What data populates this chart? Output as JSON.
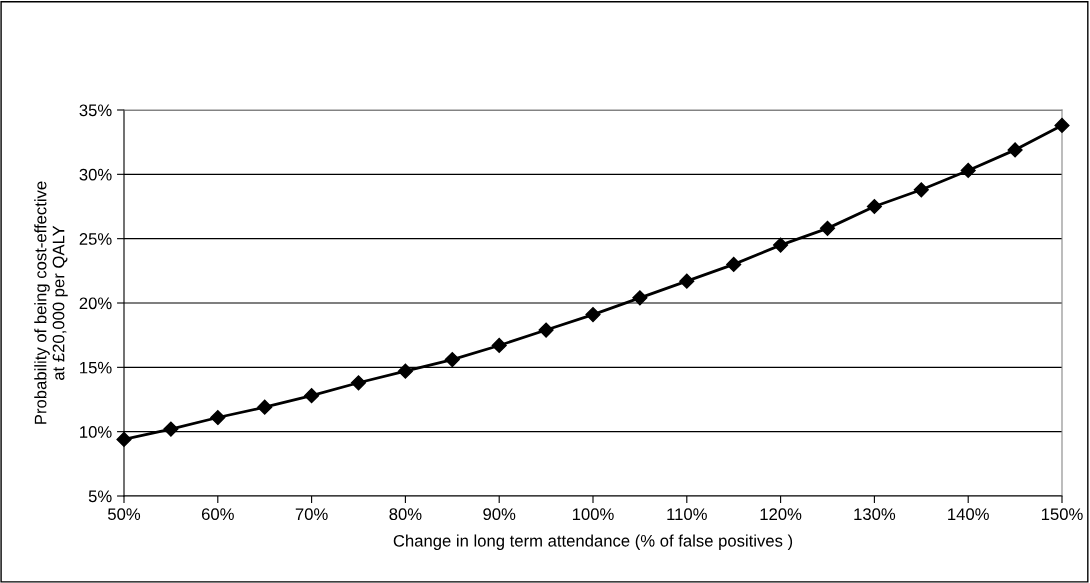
{
  "chart_data": {
    "type": "line",
    "xlabel": "Change in long term attendance (% of false positives )",
    "ylabel": "Probability of being cost-effective\nat £20,000 per QALY",
    "x": [
      50,
      55,
      60,
      65,
      70,
      75,
      80,
      85,
      90,
      95,
      100,
      105,
      110,
      115,
      120,
      125,
      130,
      135,
      140,
      145,
      150
    ],
    "series": [
      {
        "color": "#000000",
        "values": [
          9.4,
          10.2,
          11.1,
          11.9,
          12.8,
          13.8,
          14.7,
          15.6,
          16.7,
          17.9,
          19.1,
          20.4,
          21.7,
          23.0,
          24.5,
          25.8,
          27.5,
          28.8,
          30.3,
          31.9,
          33.8
        ]
      }
    ],
    "xlim": [
      50,
      150
    ],
    "xticks": [
      {
        "value": 50,
        "label": "50%"
      },
      {
        "value": 60,
        "label": "60%"
      },
      {
        "value": 70,
        "label": "70%"
      },
      {
        "value": 80,
        "label": "80%"
      },
      {
        "value": 90,
        "label": "90%"
      },
      {
        "value": 100,
        "label": "100%"
      },
      {
        "value": 110,
        "label": "110%"
      },
      {
        "value": 120,
        "label": "120%"
      },
      {
        "value": 130,
        "label": "130%"
      },
      {
        "value": 140,
        "label": "140%"
      },
      {
        "value": 150,
        "label": "150%"
      }
    ],
    "ylim": [
      5,
      35
    ],
    "yticks": [
      {
        "value": 5,
        "label": "5%"
      },
      {
        "value": 10,
        "label": "10%"
      },
      {
        "value": 15,
        "label": "15%"
      },
      {
        "value": 20,
        "label": "20%"
      },
      {
        "value": 25,
        "label": "25%"
      },
      {
        "value": 30,
        "label": "30%"
      },
      {
        "value": 35,
        "label": "35%"
      }
    ],
    "grid": "y",
    "marker": "diamond",
    "line_style": "solid"
  }
}
